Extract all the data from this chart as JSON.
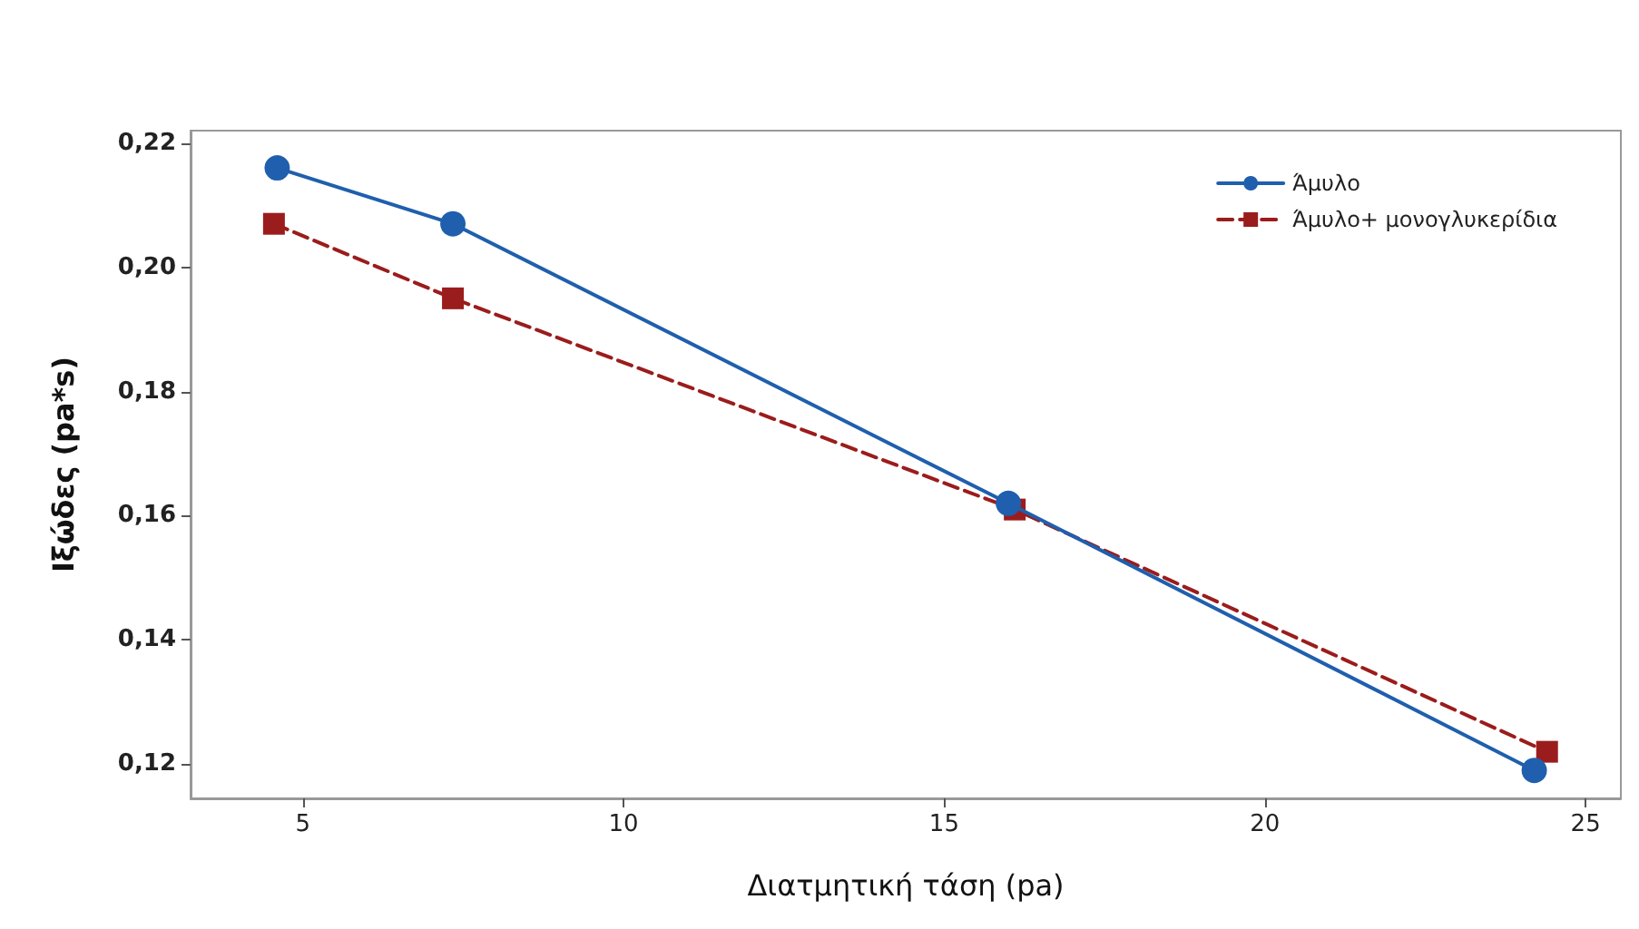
{
  "chart_data": {
    "type": "line",
    "xlabel": "Διατμητική τάση (pa)",
    "ylabel": "Ιξώδες (pa*s)",
    "xlim": [
      3.25,
      25.55
    ],
    "xticks": [
      5,
      10,
      15,
      20,
      25
    ],
    "ylim": [
      0.1145,
      0.222
    ],
    "yticks": [
      {
        "value": 0.12,
        "label": "0,12"
      },
      {
        "value": 0.14,
        "label": "0,14"
      },
      {
        "value": 0.16,
        "label": "0,16"
      },
      {
        "value": 0.18,
        "label": "0,18"
      },
      {
        "value": 0.2,
        "label": "0,20"
      },
      {
        "value": 0.22,
        "label": "0,22"
      }
    ],
    "grid": false,
    "legend": "top right",
    "series": [
      {
        "name": "Άμυλο",
        "color": "#1f5fad",
        "marker": "circle",
        "line_style": "solid",
        "x": [
          4.6,
          7.34,
          16.0,
          24.2
        ],
        "values": [
          0.216,
          0.207,
          0.162,
          0.119
        ]
      },
      {
        "name": "Άμυλο+ μονογλυκερίδια",
        "color": "#9b1c1c",
        "marker": "square",
        "line_style": "dashed",
        "x": [
          4.55,
          7.34,
          16.1,
          24.4
        ],
        "values": [
          0.207,
          0.195,
          0.161,
          0.122
        ]
      }
    ]
  }
}
